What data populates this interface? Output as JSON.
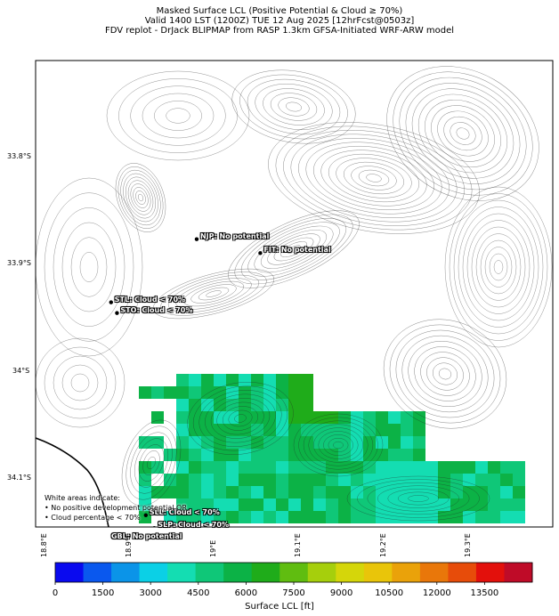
{
  "title": {
    "line1": "Masked Surface LCL (Positive Potential & Cloud ≥ 70%)",
    "line2": "Valid 1400 LST (1200Z) TUE 12 Aug 2025 [12hrFcst@0503z]",
    "line3": "FDV replot - DrJack BLIPMAP from RASP 1.3km GFSA-Initiated WRF-ARW model"
  },
  "lat_labels": [
    "33.8°S",
    "33.9°S",
    "34°S",
    "34.1°S"
  ],
  "lon_labels": [
    "18.8°E",
    "18.9°E",
    "19°E",
    "19.1°E",
    "19.2°E",
    "19.3°E"
  ],
  "stations": [
    {
      "label": "NJP: No potential",
      "lon": 18.98,
      "lat": -33.877
    },
    {
      "label": "FIT: No potential",
      "lon": 19.055,
      "lat": -33.89
    },
    {
      "label": "STL: Cloud < 70%",
      "lon": 18.879,
      "lat": -33.936
    },
    {
      "label": "STO: Cloud < 70%",
      "lon": 18.886,
      "lat": -33.946
    },
    {
      "label": "SLL: Cloud < 70%",
      "lon": 18.92,
      "lat": -34.135
    },
    {
      "label": "SLP: Cloud < 70%",
      "lon": 18.93,
      "lat": -34.147
    },
    {
      "label": "GBL: No potential",
      "lon": 18.875,
      "lat": -34.158
    }
  ],
  "note": {
    "line1": "White areas indicate:",
    "line2": "• No positive development potential OR",
    "line3": "• Cloud percentage < 70%"
  },
  "colorbar": {
    "label": "Surface LCL [ft]",
    "ticks": [
      "0",
      "1500",
      "3000",
      "4500",
      "6000",
      "7500",
      "9000",
      "10500",
      "12000",
      "13500"
    ],
    "range": [
      0,
      15000
    ],
    "colors": [
      "#0a0aef",
      "#0a58ee",
      "#0b94e8",
      "#0bd0e6",
      "#14ddb2",
      "#0fc778",
      "#0cb246",
      "#1fac1a",
      "#60bd10",
      "#a6cf0c",
      "#d5d60a",
      "#e9c50a",
      "#eaa20a",
      "#e9770a",
      "#e74c0a",
      "#e3100c",
      "#bf0b28"
    ]
  },
  "map_extent": {
    "lon": [
      18.79,
      19.4
    ],
    "lat": [
      -34.146,
      -33.71
    ]
  }
}
